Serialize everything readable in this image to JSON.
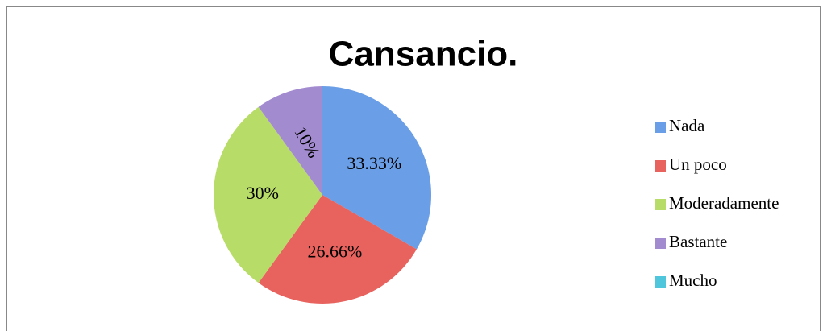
{
  "chart_data": {
    "type": "pie",
    "title": "Cansancio.",
    "categories": [
      "Nada",
      "Un poco",
      "Moderadamente",
      "Bastante",
      "Mucho"
    ],
    "values": [
      33.33,
      26.66,
      30,
      10,
      0
    ],
    "value_labels": [
      "33.33%",
      "26.66%",
      "30%",
      "10%",
      null
    ],
    "colors": [
      "#6a9ee6",
      "#e8625e",
      "#b8dc68",
      "#a38bd0",
      "#4fc6dc"
    ],
    "legend": "right"
  }
}
